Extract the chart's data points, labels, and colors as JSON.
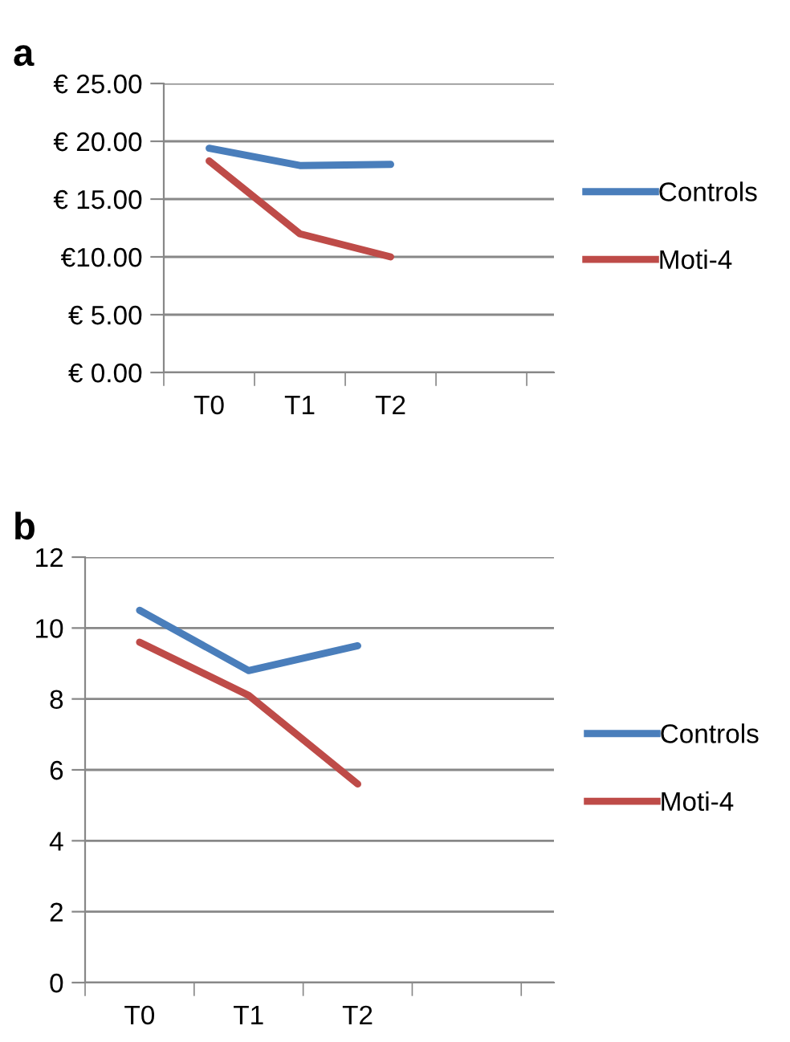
{
  "chart_data": [
    {
      "type": "line",
      "title": "a",
      "categories": [
        "T0",
        "T1",
        "T2",
        null
      ],
      "series": [
        {
          "name": "Controls",
          "color": "#4a7ebb",
          "values": [
            19.4,
            17.9,
            18.0,
            null
          ]
        },
        {
          "name": "Moti-4",
          "color": "#be4b48",
          "values": [
            18.3,
            12.0,
            10.0,
            null
          ]
        }
      ],
      "ylim": [
        0,
        25
      ],
      "yticks": [
        {
          "value": 0,
          "label": "€ 0.00"
        },
        {
          "value": 5,
          "label": "€ 5.00"
        },
        {
          "value": 10,
          "label": "€10.00"
        },
        {
          "value": 15,
          "label": "€ 15.00"
        },
        {
          "value": 20,
          "label": "€ 20.00"
        },
        {
          "value": 25,
          "label": "€ 25.00"
        }
      ],
      "grid": "y",
      "legend": "right",
      "marker": "none",
      "line_style": "solid"
    },
    {
      "type": "line",
      "title": "b",
      "categories": [
        "T0",
        "T1",
        "T2",
        null
      ],
      "series": [
        {
          "name": "Controls",
          "color": "#4a7ebb",
          "values": [
            10.5,
            8.8,
            9.5,
            null
          ]
        },
        {
          "name": "Moti-4",
          "color": "#be4b48",
          "values": [
            9.6,
            8.1,
            5.6,
            null
          ]
        }
      ],
      "ylim": [
        0,
        12
      ],
      "yticks": [
        0,
        2,
        4,
        6,
        8,
        10,
        12
      ],
      "grid": "y",
      "legend": "right",
      "marker": "none",
      "line_style": "solid"
    }
  ]
}
